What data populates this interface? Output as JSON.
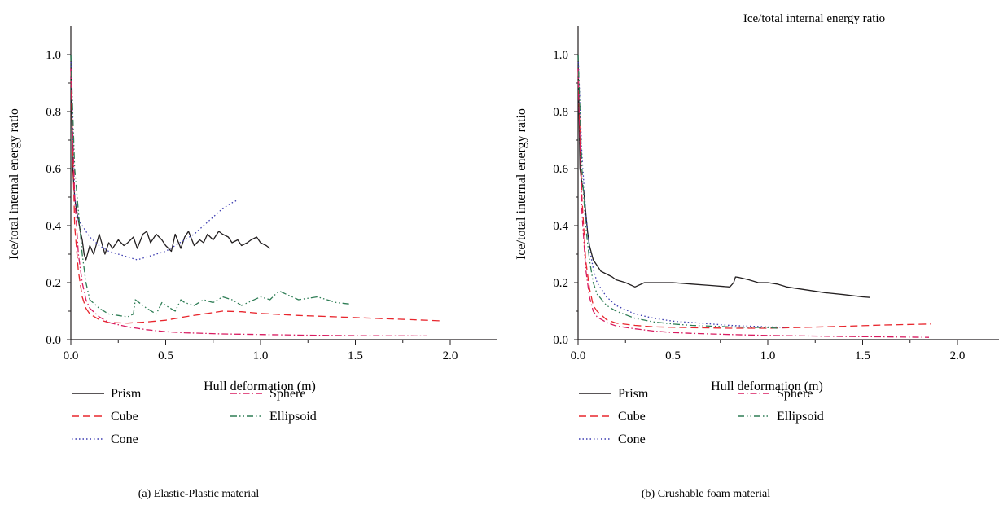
{
  "colors": {
    "prism": "#231f20",
    "cube": "#e8262d",
    "cone": "#3b3bb0",
    "sphere": "#d81b60",
    "ellipsoid": "#2e7d55",
    "axis": "#231f20"
  },
  "top_title": "Ice/total internal energy ratio",
  "chart_data": [
    {
      "type": "line",
      "caption": "(a)  Elastic-Plastic material",
      "xlabel": "Hull deformation (m)",
      "ylabel": "Ice/total internal energy ratio",
      "xlim": [
        0,
        2.25
      ],
      "ylim": [
        0,
        1.1
      ],
      "xticks": [
        0.0,
        0.5,
        1.0,
        1.5,
        2.0
      ],
      "xtick_labels": [
        "0.0",
        "0.5",
        "1.0",
        "1.5",
        "2.0"
      ],
      "yticks": [
        0.0,
        0.2,
        0.4,
        0.6,
        0.8,
        1.0
      ],
      "ytick_labels": [
        "0.0",
        "0.2",
        "0.4",
        "0.6",
        "0.8",
        "1.0"
      ],
      "legend": [
        "Prism",
        "Sphere",
        "Cube",
        "Ellipsoid",
        "Cone"
      ],
      "series": [
        {
          "name": "Prism",
          "style": "solid",
          "color_key": "prism",
          "x": [
            0.0,
            0.01,
            0.02,
            0.03,
            0.04,
            0.05,
            0.06,
            0.07,
            0.08,
            0.1,
            0.12,
            0.15,
            0.18,
            0.2,
            0.22,
            0.25,
            0.28,
            0.3,
            0.33,
            0.35,
            0.38,
            0.4,
            0.42,
            0.45,
            0.48,
            0.5,
            0.53,
            0.55,
            0.58,
            0.6,
            0.62,
            0.65,
            0.68,
            0.7,
            0.72,
            0.75,
            0.78,
            0.8,
            0.83,
            0.85,
            0.88,
            0.9,
            0.93,
            0.95,
            0.98,
            1.0,
            1.03,
            1.05
          ],
          "y": [
            1.0,
            0.6,
            0.5,
            0.45,
            0.42,
            0.38,
            0.35,
            0.3,
            0.28,
            0.33,
            0.3,
            0.37,
            0.3,
            0.34,
            0.32,
            0.35,
            0.33,
            0.34,
            0.36,
            0.32,
            0.37,
            0.38,
            0.34,
            0.37,
            0.35,
            0.33,
            0.31,
            0.37,
            0.32,
            0.36,
            0.38,
            0.33,
            0.35,
            0.34,
            0.37,
            0.35,
            0.38,
            0.37,
            0.36,
            0.34,
            0.35,
            0.33,
            0.34,
            0.35,
            0.36,
            0.34,
            0.33,
            0.32
          ]
        },
        {
          "name": "Cube",
          "style": "dashed",
          "color_key": "cube",
          "x": [
            0.0,
            0.02,
            0.04,
            0.06,
            0.08,
            0.1,
            0.15,
            0.2,
            0.3,
            0.4,
            0.5,
            0.6,
            0.7,
            0.8,
            0.9,
            1.0,
            1.2,
            1.4,
            1.6,
            1.8,
            1.95
          ],
          "y": [
            0.95,
            0.4,
            0.24,
            0.15,
            0.11,
            0.09,
            0.07,
            0.06,
            0.058,
            0.062,
            0.068,
            0.08,
            0.09,
            0.1,
            0.098,
            0.092,
            0.085,
            0.08,
            0.075,
            0.07,
            0.066
          ]
        },
        {
          "name": "Cone",
          "style": "dotted",
          "color_key": "cone",
          "x": [
            0.0,
            0.02,
            0.04,
            0.06,
            0.08,
            0.1,
            0.15,
            0.2,
            0.25,
            0.3,
            0.35,
            0.4,
            0.45,
            0.5,
            0.55,
            0.6,
            0.65,
            0.7,
            0.75,
            0.8,
            0.85,
            0.88
          ],
          "y": [
            1.0,
            0.5,
            0.42,
            0.4,
            0.38,
            0.36,
            0.33,
            0.31,
            0.3,
            0.29,
            0.28,
            0.29,
            0.3,
            0.31,
            0.33,
            0.35,
            0.37,
            0.4,
            0.43,
            0.46,
            0.48,
            0.49
          ]
        },
        {
          "name": "Sphere",
          "style": "dashdot",
          "color_key": "sphere",
          "x": [
            0.0,
            0.02,
            0.04,
            0.06,
            0.08,
            0.1,
            0.15,
            0.2,
            0.3,
            0.4,
            0.5,
            0.6,
            0.8,
            1.0,
            1.2,
            1.5,
            1.88
          ],
          "y": [
            0.95,
            0.5,
            0.3,
            0.2,
            0.14,
            0.11,
            0.08,
            0.06,
            0.045,
            0.035,
            0.028,
            0.024,
            0.02,
            0.018,
            0.016,
            0.014,
            0.013
          ]
        },
        {
          "name": "Ellipsoid",
          "style": "dashdotdot",
          "color_key": "ellipsoid",
          "x": [
            0.0,
            0.02,
            0.04,
            0.06,
            0.08,
            0.1,
            0.15,
            0.2,
            0.25,
            0.3,
            0.33,
            0.34,
            0.4,
            0.45,
            0.48,
            0.5,
            0.55,
            0.58,
            0.6,
            0.65,
            0.7,
            0.75,
            0.8,
            0.85,
            0.9,
            1.0,
            1.05,
            1.08,
            1.1,
            1.2,
            1.3,
            1.4,
            1.47
          ],
          "y": [
            1.0,
            0.6,
            0.45,
            0.3,
            0.2,
            0.14,
            0.11,
            0.09,
            0.085,
            0.08,
            0.09,
            0.14,
            0.11,
            0.09,
            0.13,
            0.12,
            0.1,
            0.14,
            0.13,
            0.12,
            0.14,
            0.13,
            0.15,
            0.14,
            0.12,
            0.15,
            0.14,
            0.16,
            0.17,
            0.14,
            0.15,
            0.13,
            0.125
          ]
        }
      ]
    },
    {
      "type": "line",
      "caption": "(b)  Crushable foam material",
      "xlabel": "Hull deformation (m)",
      "ylabel": "Ice/total internal energy ratio",
      "xlim": [
        0,
        2.25
      ],
      "ylim": [
        0,
        1.1
      ],
      "xticks": [
        0.0,
        0.5,
        1.0,
        1.5,
        2.0
      ],
      "xtick_labels": [
        "0.0",
        "0.5",
        "1.0",
        "1.5",
        "2.0"
      ],
      "yticks": [
        0.0,
        0.2,
        0.4,
        0.6,
        0.8,
        1.0
      ],
      "ytick_labels": [
        "0.0",
        "0.2",
        "0.4",
        "0.6",
        "0.8",
        "1.0"
      ],
      "legend": [
        "Prism",
        "Sphere",
        "Cube",
        "Ellipsoid",
        "Cone"
      ],
      "series": [
        {
          "name": "Prism",
          "style": "solid",
          "color_key": "prism",
          "x": [
            0.0,
            0.01,
            0.02,
            0.03,
            0.04,
            0.05,
            0.06,
            0.08,
            0.1,
            0.12,
            0.15,
            0.18,
            0.2,
            0.25,
            0.3,
            0.35,
            0.4,
            0.45,
            0.5,
            0.6,
            0.7,
            0.8,
            0.82,
            0.83,
            0.85,
            0.9,
            0.95,
            1.0,
            1.05,
            1.1,
            1.2,
            1.3,
            1.4,
            1.5,
            1.54
          ],
          "y": [
            1.0,
            0.6,
            0.55,
            0.52,
            0.45,
            0.38,
            0.33,
            0.28,
            0.26,
            0.24,
            0.23,
            0.22,
            0.21,
            0.2,
            0.185,
            0.2,
            0.2,
            0.2,
            0.2,
            0.195,
            0.19,
            0.185,
            0.2,
            0.22,
            0.218,
            0.21,
            0.2,
            0.2,
            0.195,
            0.185,
            0.175,
            0.165,
            0.158,
            0.15,
            0.148
          ]
        },
        {
          "name": "Cube",
          "style": "dashed",
          "color_key": "cube",
          "x": [
            0.0,
            0.02,
            0.04,
            0.06,
            0.08,
            0.1,
            0.15,
            0.2,
            0.3,
            0.4,
            0.6,
            0.8,
            1.0,
            1.2,
            1.4,
            1.6,
            1.86
          ],
          "y": [
            0.95,
            0.5,
            0.28,
            0.18,
            0.12,
            0.1,
            0.07,
            0.058,
            0.05,
            0.045,
            0.042,
            0.04,
            0.04,
            0.043,
            0.047,
            0.051,
            0.055
          ]
        },
        {
          "name": "Cone",
          "style": "dotted",
          "color_key": "cone",
          "x": [
            0.0,
            0.02,
            0.04,
            0.06,
            0.08,
            0.1,
            0.15,
            0.2,
            0.3,
            0.4,
            0.5,
            0.6,
            0.8,
            1.0,
            1.1
          ],
          "y": [
            1.0,
            0.65,
            0.45,
            0.32,
            0.25,
            0.2,
            0.15,
            0.12,
            0.09,
            0.075,
            0.065,
            0.06,
            0.05,
            0.045,
            0.043
          ]
        },
        {
          "name": "Sphere",
          "style": "dashdot",
          "color_key": "sphere",
          "x": [
            0.0,
            0.02,
            0.04,
            0.06,
            0.08,
            0.1,
            0.15,
            0.2,
            0.3,
            0.4,
            0.5,
            0.6,
            0.8,
            1.0,
            1.2,
            1.4,
            1.6,
            1.85
          ],
          "y": [
            0.95,
            0.45,
            0.25,
            0.15,
            0.1,
            0.08,
            0.06,
            0.048,
            0.038,
            0.03,
            0.025,
            0.022,
            0.018,
            0.015,
            0.013,
            0.011,
            0.01,
            0.008
          ]
        },
        {
          "name": "Ellipsoid",
          "style": "dashdotdot",
          "color_key": "ellipsoid",
          "x": [
            0.0,
            0.02,
            0.04,
            0.06,
            0.08,
            0.1,
            0.15,
            0.2,
            0.3,
            0.4,
            0.5,
            0.6,
            0.8,
            1.0,
            1.05
          ],
          "y": [
            1.0,
            0.6,
            0.4,
            0.28,
            0.2,
            0.16,
            0.12,
            0.1,
            0.075,
            0.062,
            0.055,
            0.05,
            0.045,
            0.042,
            0.04
          ]
        }
      ]
    }
  ]
}
